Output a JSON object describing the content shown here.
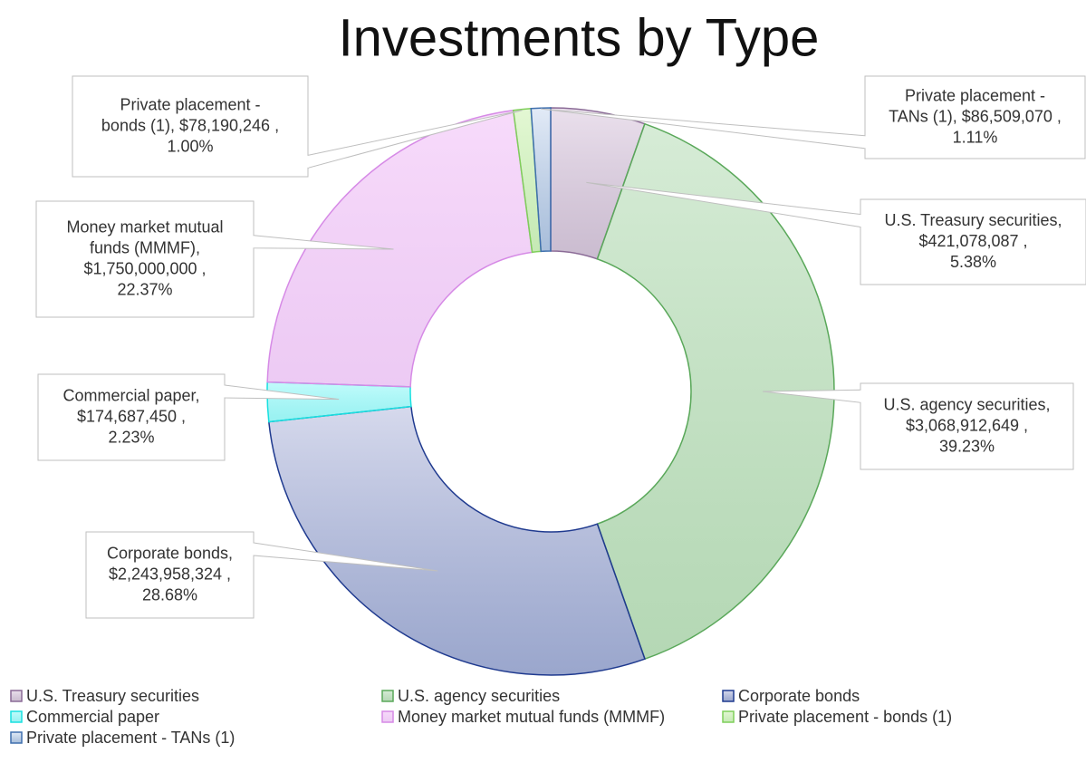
{
  "chart_data": {
    "type": "donut",
    "title": "Investments by Type",
    "categories": [
      "U.S. Treasury securities",
      "U.S. agency securities",
      "Corporate bonds",
      "Commercial paper",
      "Money market mutual funds (MMMF)",
      "Private placement - bonds (1)",
      "Private placement - TANs (1)"
    ],
    "values": [
      421078087,
      3068912649,
      2243958324,
      174687450,
      1750000000,
      78190246,
      86509070
    ],
    "value_labels": [
      [
        "U.S. Treasury securities,",
        "$421,078,087 ,",
        "5.38%"
      ],
      [
        "U.S. agency securities,",
        "$3,068,912,649 ,",
        "39.23%"
      ],
      [
        "Corporate bonds,",
        "$2,243,958,324 ,",
        "28.68%"
      ],
      [
        "Commercial paper,",
        "$174,687,450 ,",
        "2.23%"
      ],
      [
        "Money market mutual",
        "funds (MMMF),",
        "$1,750,000,000 ,",
        "22.37%"
      ],
      [
        "Private placement -",
        "bonds (1),  $78,190,246 ,",
        "1.00%"
      ],
      [
        "Private placement -",
        "TANs (1),  $86,509,070 ,",
        "1.11%"
      ]
    ],
    "colors": [
      "#d9c6dd",
      "#b5dcb5",
      "#b4badd",
      "#8ff8f8",
      "#f1bdf7",
      "#cdf2b0",
      "#cbdaf0"
    ],
    "edge_colors": [
      "#8a6a96",
      "#5aa85a",
      "#1f3a8f",
      "#19e0e0",
      "#d68ae6",
      "#7fcf5a",
      "#3f6fae"
    ],
    "legend": "bottom"
  }
}
